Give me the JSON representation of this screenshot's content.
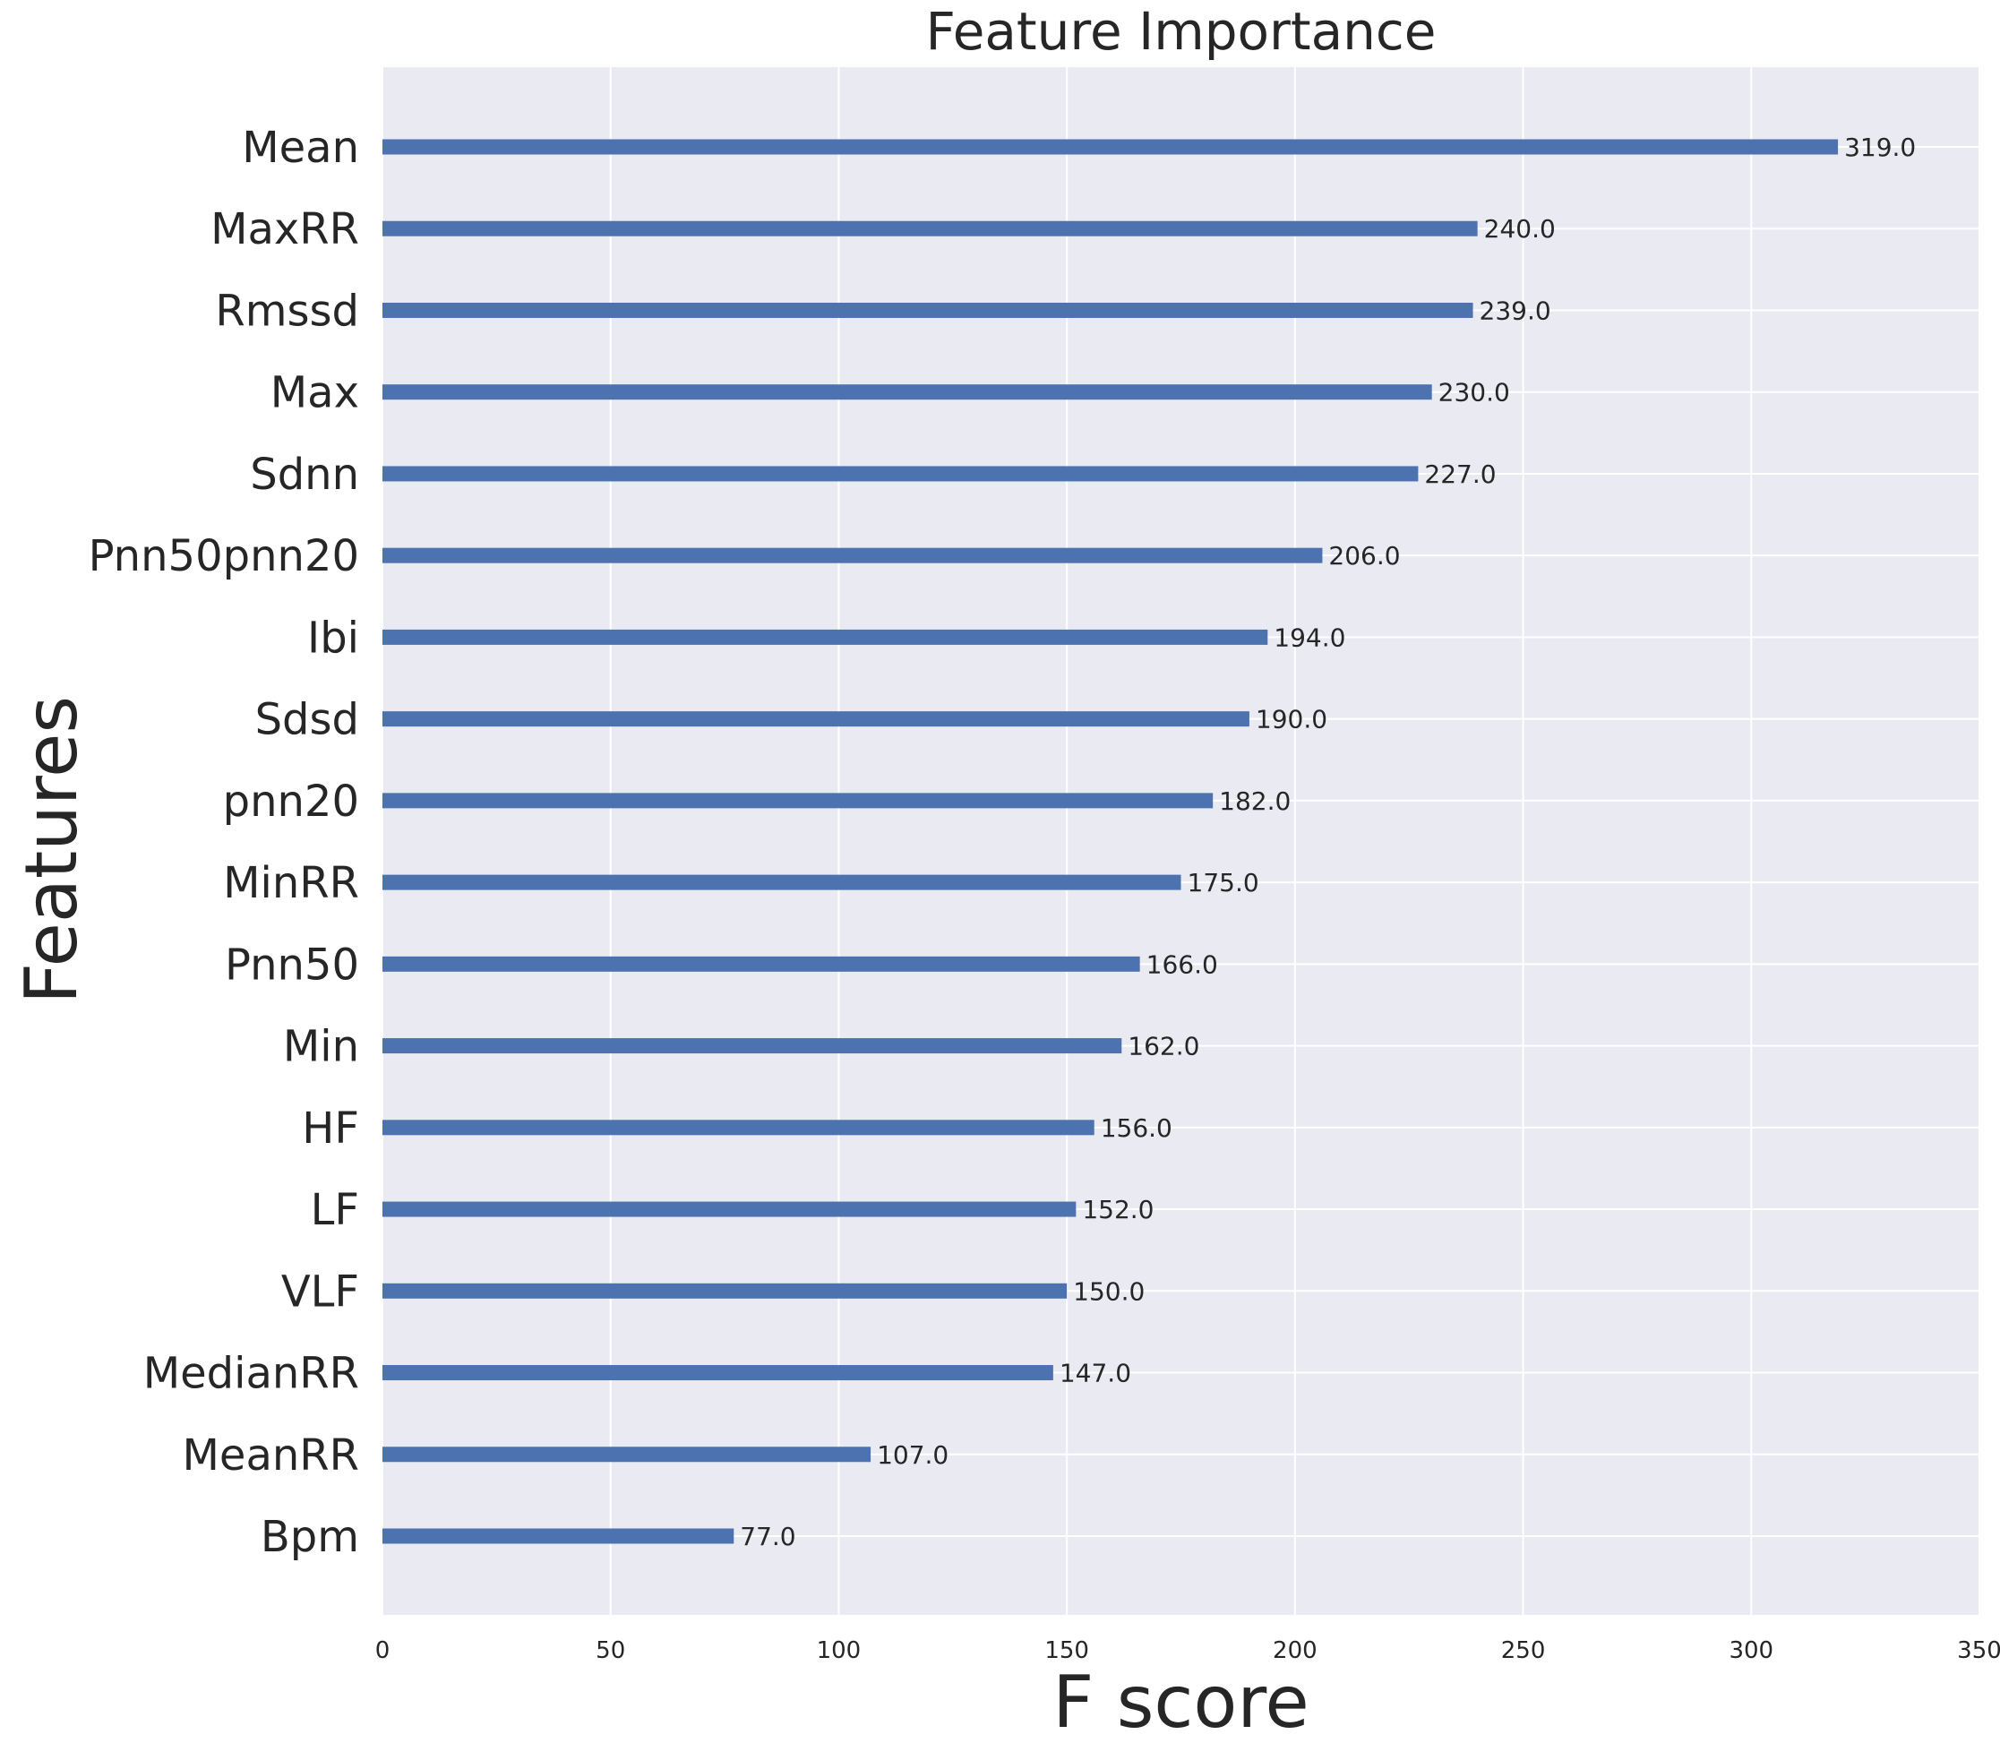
{
  "chart_data": {
    "type": "bar",
    "orientation": "horizontal",
    "title": "Feature Importance",
    "xlabel": "F score",
    "ylabel": "Features",
    "xlim": [
      0,
      350
    ],
    "xticks": [
      "0",
      "50",
      "100",
      "150",
      "200",
      "250",
      "300",
      "350"
    ],
    "grid": true,
    "categories": [
      "Mean",
      "MaxRR",
      "Rmssd",
      "Max",
      "Sdnn",
      "Pnn50pnn20",
      "Ibi",
      "Sdsd",
      "pnn20",
      "MinRR",
      "Pnn50",
      "Min",
      "HF",
      "LF",
      "VLF",
      "MedianRR",
      "MeanRR",
      "Bpm"
    ],
    "values": [
      319,
      240,
      239,
      230,
      227,
      206,
      194,
      190,
      182,
      175,
      166,
      162,
      156,
      152,
      150,
      147,
      107,
      77
    ],
    "value_labels": [
      "319.0",
      "240.0",
      "239.0",
      "230.0",
      "227.0",
      "206.0",
      "194.0",
      "190.0",
      "182.0",
      "175.0",
      "166.0",
      "162.0",
      "156.0",
      "152.0",
      "150.0",
      "147.0",
      "107.0",
      "77.0"
    ],
    "colors": {
      "bar": "#4c72b0",
      "plot_background": "#eaeaf2",
      "grid": "#ffffff",
      "text": "#262626"
    }
  }
}
